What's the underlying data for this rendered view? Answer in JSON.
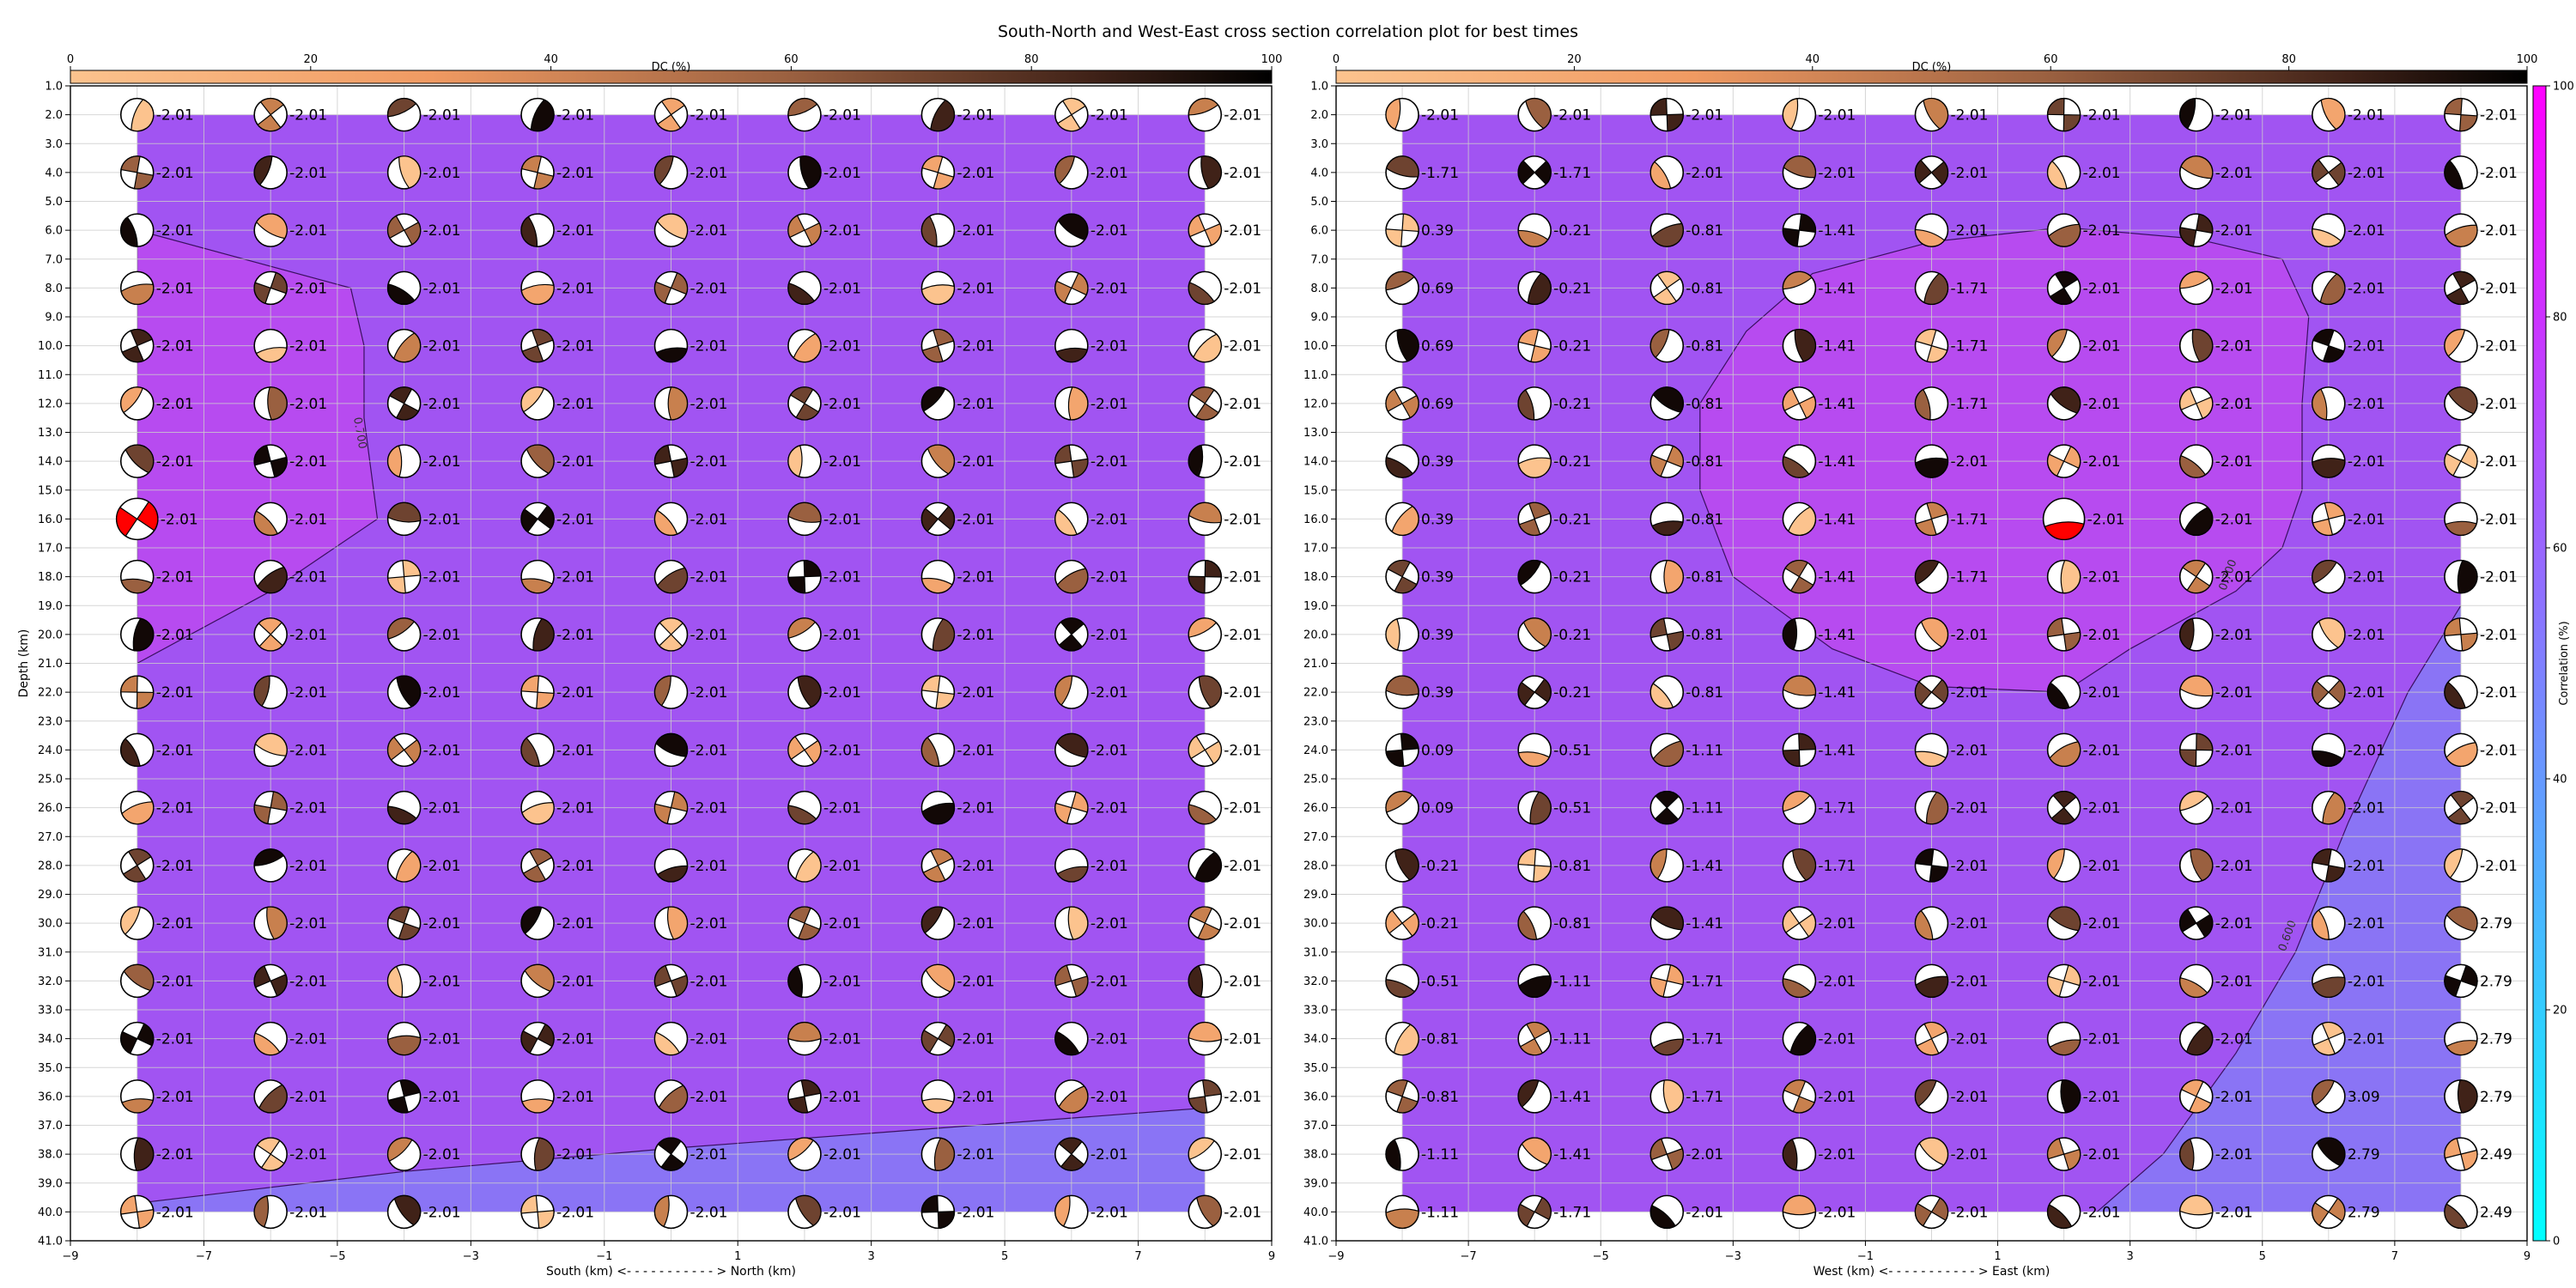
{
  "title": "South-North and West-East cross section correlation plot for best times",
  "chart_data": [
    {
      "type": "heatmap",
      "panel": "south-north",
      "xlabel": "South (km) <- - - - - - - - - - - > North (km)",
      "ylabel": "Depth (km)",
      "xlim": [
        -9,
        9
      ],
      "ylim": [
        41,
        1
      ],
      "x_ticks": [
        "−9",
        "−7",
        "−5",
        "−3",
        "−1",
        "1",
        "3",
        "5",
        "7",
        "9"
      ],
      "y_ticks": [
        "1.0",
        "2.0",
        "3.0",
        "4.0",
        "5.0",
        "6.0",
        "7.0",
        "8.0",
        "9.0",
        "10.0",
        "11.0",
        "12.0",
        "13.0",
        "14.0",
        "15.0",
        "16.0",
        "17.0",
        "18.0",
        "19.0",
        "20.0",
        "21.0",
        "22.0",
        "23.0",
        "24.0",
        "25.0",
        "26.0",
        "27.0",
        "28.0",
        "29.0",
        "30.0",
        "31.0",
        "32.0",
        "33.0",
        "34.0",
        "35.0",
        "36.0",
        "37.0",
        "38.0",
        "39.0",
        "40.0",
        "41.0"
      ],
      "x_positions": [
        -8,
        -6,
        -4,
        -2,
        0,
        2,
        4,
        6,
        8
      ],
      "depths": [
        2,
        4,
        6,
        8,
        10,
        12,
        14,
        16,
        18,
        20,
        22,
        24,
        26,
        28,
        30,
        32,
        34,
        36,
        38,
        40
      ],
      "mag_labels": [
        [
          "-2.01",
          "-2.01",
          "-2.01",
          "-2.01",
          "-2.01",
          "-2.01",
          "-2.01",
          "-2.01",
          "-2.01"
        ],
        [
          "-2.01",
          "-2.01",
          "-2.01",
          "-2.01",
          "-2.01",
          "-2.01",
          "-2.01",
          "-2.01",
          "-2.01"
        ],
        [
          "-2.01",
          "-2.01",
          "-2.01",
          "-2.01",
          "-2.01",
          "-2.01",
          "-2.01",
          "-2.01",
          "-2.01"
        ],
        [
          "-2.01",
          "-2.01",
          "-2.01",
          "-2.01",
          "-2.01",
          "-2.01",
          "-2.01",
          "-2.01",
          "-2.01"
        ],
        [
          "-2.01",
          "-2.01",
          "-2.01",
          "-2.01",
          "-2.01",
          "-2.01",
          "-2.01",
          "-2.01",
          "-2.01"
        ],
        [
          "-2.01",
          "-2.01",
          "-2.01",
          "-2.01",
          "-2.01",
          "-2.01",
          "-2.01",
          "-2.01",
          "-2.01"
        ],
        [
          "-2.01",
          "-2.01",
          "-2.01",
          "-2.01",
          "-2.01",
          "-2.01",
          "-2.01",
          "-2.01",
          "-2.01"
        ],
        [
          "-2.01",
          "-2.01",
          "-2.01",
          "-2.01",
          "-2.01",
          "-2.01",
          "-2.01",
          "-2.01",
          "-2.01"
        ],
        [
          "-2.01",
          "-2.01",
          "-2.01",
          "-2.01",
          "-2.01",
          "-2.01",
          "-2.01",
          "-2.01",
          "-2.01"
        ],
        [
          "-2.01",
          "-2.01",
          "-2.01",
          "-2.01",
          "-2.01",
          "-2.01",
          "-2.01",
          "-2.01",
          "-2.01"
        ],
        [
          "-2.01",
          "-2.01",
          "-2.01",
          "-2.01",
          "-2.01",
          "-2.01",
          "-2.01",
          "-2.01",
          "-2.01"
        ],
        [
          "-2.01",
          "-2.01",
          "-2.01",
          "-2.01",
          "-2.01",
          "-2.01",
          "-2.01",
          "-2.01",
          "-2.01"
        ],
        [
          "-2.01",
          "-2.01",
          "-2.01",
          "-2.01",
          "-2.01",
          "-2.01",
          "-2.01",
          "-2.01",
          "-2.01"
        ],
        [
          "-2.01",
          "-2.01",
          "-2.01",
          "-2.01",
          "-2.01",
          "-2.01",
          "-2.01",
          "-2.01",
          "-2.01"
        ],
        [
          "-2.01",
          "-2.01",
          "-2.01",
          "-2.01",
          "-2.01",
          "-2.01",
          "-2.01",
          "-2.01",
          "-2.01"
        ],
        [
          "-2.01",
          "-2.01",
          "-2.01",
          "-2.01",
          "-2.01",
          "-2.01",
          "-2.01",
          "-2.01",
          "-2.01"
        ],
        [
          "-2.01",
          "-2.01",
          "-2.01",
          "-2.01",
          "-2.01",
          "-2.01",
          "-2.01",
          "-2.01",
          "-2.01"
        ],
        [
          "-2.01",
          "-2.01",
          "-2.01",
          "-2.01",
          "-2.01",
          "-2.01",
          "-2.01",
          "-2.01",
          "-2.01"
        ],
        [
          "-2.01",
          "-2.01",
          "-2.01",
          "-2.01",
          "-2.01",
          "-2.01",
          "-2.01",
          "-2.01",
          "-2.01"
        ],
        [
          "-2.01",
          "-2.01",
          "-2.01",
          "-2.01",
          "-2.01",
          "-2.01",
          "-2.01",
          "-2.01",
          "-2.01"
        ]
      ],
      "best_solution": {
        "x": -8,
        "depth": 16
      },
      "contours": [
        {
          "label": "0.700",
          "level": 0.7,
          "points": [
            [
              -8,
              6
            ],
            [
              -4.8,
              8
            ],
            [
              -4.6,
              10
            ],
            [
              -4.6,
              12.5
            ],
            [
              -4.4,
              16
            ],
            [
              -6,
              18.5
            ],
            [
              -8,
              21
            ]
          ]
        },
        {
          "label": "",
          "level": 0.6,
          "points": [
            [
              -8,
              39.7
            ],
            [
              -4,
              38.6
            ],
            [
              0,
              37.8
            ],
            [
              4,
              37.1
            ],
            [
              8,
              36.4
            ]
          ]
        }
      ],
      "low_region": "below-contour"
    },
    {
      "type": "heatmap",
      "panel": "west-east",
      "xlabel": "West (km) <- - - - - - - - - - - > East (km)",
      "ylabel": "",
      "xlim": [
        -9,
        9
      ],
      "ylim": [
        41,
        1
      ],
      "x_ticks": [
        "−9",
        "−7",
        "−5",
        "−3",
        "−1",
        "1",
        "3",
        "5",
        "7",
        "9"
      ],
      "y_ticks": [
        "1.0",
        "2.0",
        "3.0",
        "4.0",
        "5.0",
        "6.0",
        "7.0",
        "8.0",
        "9.0",
        "10.0",
        "11.0",
        "12.0",
        "13.0",
        "14.0",
        "15.0",
        "16.0",
        "17.0",
        "18.0",
        "19.0",
        "20.0",
        "21.0",
        "22.0",
        "23.0",
        "24.0",
        "25.0",
        "26.0",
        "27.0",
        "28.0",
        "29.0",
        "30.0",
        "31.0",
        "32.0",
        "33.0",
        "34.0",
        "35.0",
        "36.0",
        "37.0",
        "38.0",
        "39.0",
        "40.0",
        "41.0"
      ],
      "x_positions": [
        -8,
        -6,
        -4,
        -2,
        0,
        2,
        4,
        6,
        8
      ],
      "depths": [
        2,
        4,
        6,
        8,
        10,
        12,
        14,
        16,
        18,
        20,
        22,
        24,
        26,
        28,
        30,
        32,
        34,
        36,
        38,
        40
      ],
      "mag_labels": [
        [
          "-2.01",
          "-2.01",
          "-2.01",
          "-2.01",
          "-2.01",
          "-2.01",
          "-2.01",
          "-2.01",
          "-2.01"
        ],
        [
          "-1.71",
          "-1.71",
          "-2.01",
          "-2.01",
          "-2.01",
          "-2.01",
          "-2.01",
          "-2.01",
          "-2.01"
        ],
        [
          "0.39",
          "-0.21",
          "-0.81",
          "-1.41",
          "-2.01",
          "-2.01",
          "-2.01",
          "-2.01",
          "-2.01"
        ],
        [
          "0.69",
          "-0.21",
          "-0.81",
          "-1.41",
          "-1.71",
          "-2.01",
          "-2.01",
          "-2.01",
          "-2.01"
        ],
        [
          "0.69",
          "-0.21",
          "-0.81",
          "-1.41",
          "-1.71",
          "-2.01",
          "-2.01",
          "-2.01",
          "-2.01"
        ],
        [
          "0.69",
          "-0.21",
          "-0.81",
          "-1.41",
          "-1.71",
          "-2.01",
          "-2.01",
          "-2.01",
          "-2.01"
        ],
        [
          "0.39",
          "-0.21",
          "-0.81",
          "-1.41",
          "-2.01",
          "-2.01",
          "-2.01",
          "-2.01",
          "-2.01"
        ],
        [
          "0.39",
          "-0.21",
          "-0.81",
          "-1.41",
          "-1.71",
          "-2.01",
          "-2.01",
          "-2.01",
          "-2.01"
        ],
        [
          "0.39",
          "-0.21",
          "-0.81",
          "-1.41",
          "-1.71",
          "-2.01",
          "-2.01",
          "-2.01",
          "-2.01"
        ],
        [
          "0.39",
          "-0.21",
          "-0.81",
          "-1.41",
          "-2.01",
          "-2.01",
          "-2.01",
          "-2.01",
          "-2.01"
        ],
        [
          "0.39",
          "-0.21",
          "-0.81",
          "-1.41",
          "-2.01",
          "-2.01",
          "-2.01",
          "-2.01",
          "-2.01"
        ],
        [
          "0.09",
          "-0.51",
          "-1.11",
          "-1.41",
          "-2.01",
          "-2.01",
          "-2.01",
          "-2.01",
          "-2.01"
        ],
        [
          "0.09",
          "-0.51",
          "-1.11",
          "-1.71",
          "-2.01",
          "-2.01",
          "-2.01",
          "-2.01",
          "-2.01"
        ],
        [
          "-0.21",
          "-0.81",
          "-1.41",
          "-1.71",
          "-2.01",
          "-2.01",
          "-2.01",
          "-2.01",
          "-2.01"
        ],
        [
          "-0.21",
          "-0.81",
          "-1.41",
          "-2.01",
          "-2.01",
          "-2.01",
          "-2.01",
          "-2.01",
          "2.79"
        ],
        [
          "-0.51",
          "-1.11",
          "-1.71",
          "-2.01",
          "-2.01",
          "-2.01",
          "-2.01",
          "-2.01",
          "2.79"
        ],
        [
          "-0.81",
          "-1.11",
          "-1.71",
          "-2.01",
          "-2.01",
          "-2.01",
          "-2.01",
          "-2.01",
          "2.79"
        ],
        [
          "-0.81",
          "-1.41",
          "-1.71",
          "-2.01",
          "-2.01",
          "-2.01",
          "-2.01",
          "3.09",
          "2.79"
        ],
        [
          "-1.11",
          "-1.41",
          "-2.01",
          "-2.01",
          "-2.01",
          "-2.01",
          "-2.01",
          "2.79",
          "2.49"
        ],
        [
          "-1.11",
          "-1.71",
          "-2.01",
          "-2.01",
          "-2.01",
          "-2.01",
          "-2.01",
          "2.79",
          "2.49"
        ]
      ],
      "best_solution": {
        "x": 2,
        "depth": 16
      },
      "contours": [
        {
          "label": "0.700",
          "level": 0.7,
          "points": [
            [
              -1.8,
              7.5
            ],
            [
              0,
              6.4
            ],
            [
              2,
              5.9
            ],
            [
              4,
              6.3
            ],
            [
              5.3,
              7
            ],
            [
              5.7,
              9
            ],
            [
              5.6,
              12
            ],
            [
              5.6,
              15
            ],
            [
              5.3,
              17
            ],
            [
              4.6,
              18.5
            ],
            [
              3,
              20.5
            ],
            [
              2,
              22
            ],
            [
              0,
              21.8
            ],
            [
              -1.5,
              20.5
            ],
            [
              -3,
              18
            ],
            [
              -3.5,
              15
            ],
            [
              -3.5,
              12
            ],
            [
              -2.8,
              9.5
            ],
            [
              -1.8,
              7.5
            ]
          ]
        },
        {
          "label": "0.600",
          "level": 0.6,
          "points": [
            [
              2,
              41
            ],
            [
              3.5,
              38
            ],
            [
              4.6,
              34.5
            ],
            [
              5.5,
              31
            ],
            [
              6.3,
              26.5
            ],
            [
              7.2,
              22
            ],
            [
              8,
              19
            ]
          ]
        }
      ],
      "low_region": "east-of-contour"
    }
  ],
  "dc_colorbar": {
    "label": "DC (%)",
    "ticks": [
      "0",
      "20",
      "40",
      "60",
      "80",
      "100"
    ],
    "range": [
      0,
      100
    ]
  },
  "correlation_colorbar": {
    "label": "Correlation (%)",
    "ticks": [
      "0",
      "20",
      "40",
      "60",
      "80",
      "100"
    ],
    "range": [
      0,
      100
    ]
  },
  "colors": {
    "background": "#a154f2",
    "high_region": "#b74bf0",
    "low_region": "#8a74f5",
    "best_beachball": "#ff0000",
    "dc_low": "#fbb57d",
    "dc_mid": "#9a6040",
    "dc_high": "#000000",
    "corr_low": "#00ffff",
    "corr_high": "#ff00ff"
  }
}
